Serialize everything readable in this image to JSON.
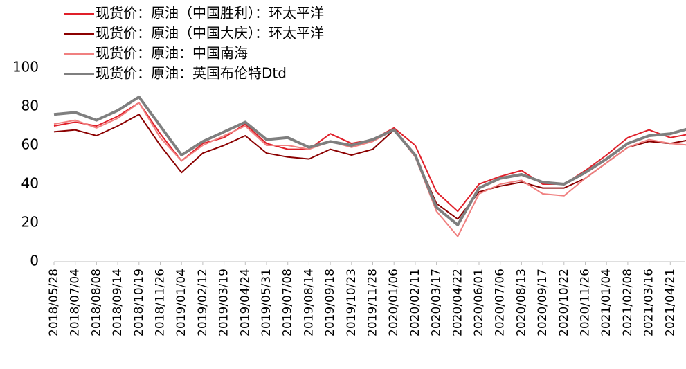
{
  "chart_data": {
    "type": "line",
    "x": [
      "2018/05/28",
      "2018/07/04",
      "2018/08/08",
      "2018/09/14",
      "2018/10/19",
      "2018/11/26",
      "2019/01/04",
      "2019/02/12",
      "2019/03/19",
      "2019/04/24",
      "2019/05/31",
      "2019/07/08",
      "2019/08/14",
      "2019/09/18",
      "2019/10/23",
      "2019/11/28",
      "2020/01/06",
      "2020/02/11",
      "2020/03/17",
      "2020/04/22",
      "2020/06/01",
      "2020/07/06",
      "2020/08/13",
      "2020/09/17",
      "2020/10/22",
      "2020/11/26",
      "2021/01/04",
      "2021/02/08",
      "2021/03/16",
      "2021/04/21",
      null
    ],
    "series": [
      {
        "name": "现货价：原油（中国胜利）：环太平洋",
        "color": "#e0202a",
        "width": 2,
        "values": [
          70,
          72,
          70,
          75,
          82,
          66,
          52,
          61,
          64,
          71,
          61,
          58,
          58,
          66,
          61,
          63,
          69,
          60,
          36,
          26,
          40,
          44,
          47,
          40,
          40,
          47,
          55,
          64,
          68,
          64,
          66
        ]
      },
      {
        "name": "现货价：原油（中国大庆）：环太平洋",
        "color": "#8b0000",
        "width": 2,
        "values": [
          67,
          68,
          65,
          70,
          76,
          60,
          46,
          56,
          60,
          65,
          56,
          54,
          53,
          58,
          55,
          58,
          68,
          55,
          30,
          22,
          36,
          39,
          41,
          38,
          38,
          43,
          51,
          59,
          62,
          61,
          63
        ]
      },
      {
        "name": "现货价：原油：中国南海",
        "color": "#f08080",
        "width": 2,
        "values": [
          71,
          73,
          69,
          74,
          82,
          64,
          52,
          60,
          65,
          70,
          60,
          60,
          58,
          62,
          59,
          62,
          68,
          54,
          26,
          13,
          35,
          40,
          42,
          35,
          34,
          43,
          51,
          59,
          63,
          61,
          60
        ]
      },
      {
        "name": "现货价：原油：英国布伦特Dtd",
        "color": "#7f7f7f",
        "width": 4,
        "values": [
          76,
          77,
          73,
          78,
          85,
          70,
          55,
          62,
          67,
          72,
          63,
          64,
          59,
          62,
          60,
          63,
          68,
          55,
          28,
          19,
          38,
          43,
          45,
          41,
          40,
          46,
          53,
          61,
          65,
          66,
          69
        ]
      }
    ],
    "ylim": [
      0,
      100
    ],
    "yticks": [
      0,
      20,
      40,
      60,
      80,
      100
    ],
    "legend": "upper left"
  }
}
